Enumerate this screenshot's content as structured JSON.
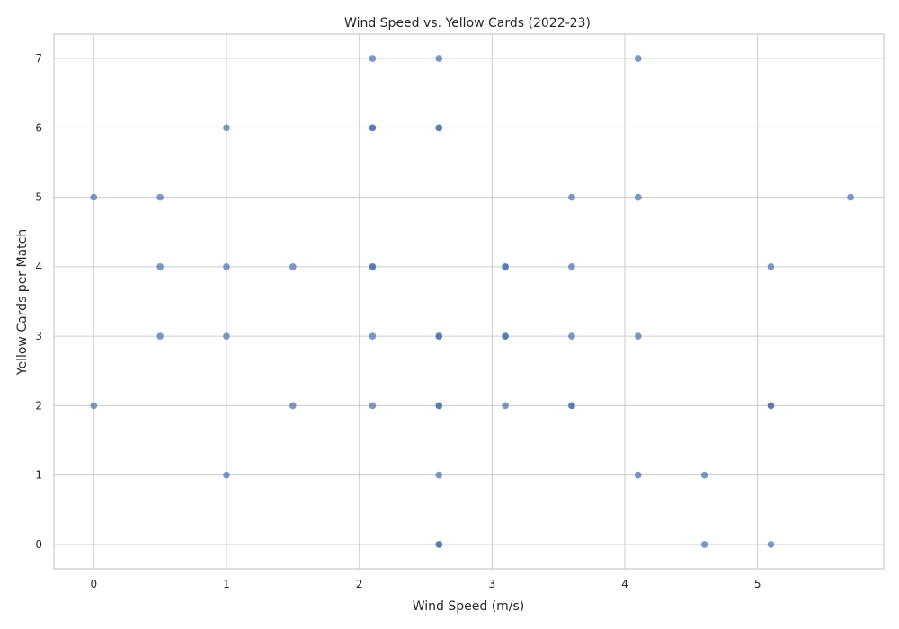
{
  "chart_data": {
    "type": "scatter",
    "title": "Wind Speed vs. Yellow Cards (2022-23)",
    "xlabel": "Wind Speed (m/s)",
    "ylabel": "Yellow Cards per Match",
    "xlim": [
      -0.3,
      5.95
    ],
    "ylim": [
      -0.35,
      7.35
    ],
    "xticks": [
      "0",
      "1",
      "2",
      "3",
      "4",
      "5"
    ],
    "yticks": [
      "0",
      "1",
      "2",
      "3",
      "4",
      "5",
      "6",
      "7"
    ],
    "grid": true,
    "color": "#4c72b0",
    "points": [
      {
        "x": 0.0,
        "y": 5
      },
      {
        "x": 0.0,
        "y": 2
      },
      {
        "x": 0.5,
        "y": 5
      },
      {
        "x": 0.5,
        "y": 4
      },
      {
        "x": 0.5,
        "y": 3
      },
      {
        "x": 1.0,
        "y": 6
      },
      {
        "x": 1.0,
        "y": 4
      },
      {
        "x": 1.0,
        "y": 3
      },
      {
        "x": 1.0,
        "y": 1
      },
      {
        "x": 1.5,
        "y": 4
      },
      {
        "x": 1.5,
        "y": 2
      },
      {
        "x": 2.1,
        "y": 7
      },
      {
        "x": 2.1,
        "y": 6
      },
      {
        "x": 2.1,
        "y": 6
      },
      {
        "x": 2.1,
        "y": 4
      },
      {
        "x": 2.1,
        "y": 4
      },
      {
        "x": 2.1,
        "y": 3
      },
      {
        "x": 2.1,
        "y": 2
      },
      {
        "x": 2.6,
        "y": 7
      },
      {
        "x": 2.6,
        "y": 6
      },
      {
        "x": 2.6,
        "y": 6
      },
      {
        "x": 2.6,
        "y": 3
      },
      {
        "x": 2.6,
        "y": 3
      },
      {
        "x": 2.6,
        "y": 2
      },
      {
        "x": 2.6,
        "y": 2
      },
      {
        "x": 2.6,
        "y": 1
      },
      {
        "x": 2.6,
        "y": 0
      },
      {
        "x": 2.6,
        "y": 0
      },
      {
        "x": 3.1,
        "y": 4
      },
      {
        "x": 3.1,
        "y": 4
      },
      {
        "x": 3.1,
        "y": 3
      },
      {
        "x": 3.1,
        "y": 3
      },
      {
        "x": 3.1,
        "y": 2
      },
      {
        "x": 3.6,
        "y": 5
      },
      {
        "x": 3.6,
        "y": 4
      },
      {
        "x": 3.6,
        "y": 3
      },
      {
        "x": 3.6,
        "y": 2
      },
      {
        "x": 3.6,
        "y": 2
      },
      {
        "x": 4.1,
        "y": 7
      },
      {
        "x": 4.1,
        "y": 5
      },
      {
        "x": 4.1,
        "y": 3
      },
      {
        "x": 4.1,
        "y": 1
      },
      {
        "x": 4.6,
        "y": 1
      },
      {
        "x": 4.6,
        "y": 0
      },
      {
        "x": 5.1,
        "y": 4
      },
      {
        "x": 5.1,
        "y": 2
      },
      {
        "x": 5.1,
        "y": 2
      },
      {
        "x": 5.1,
        "y": 0
      },
      {
        "x": 5.7,
        "y": 5
      }
    ]
  }
}
